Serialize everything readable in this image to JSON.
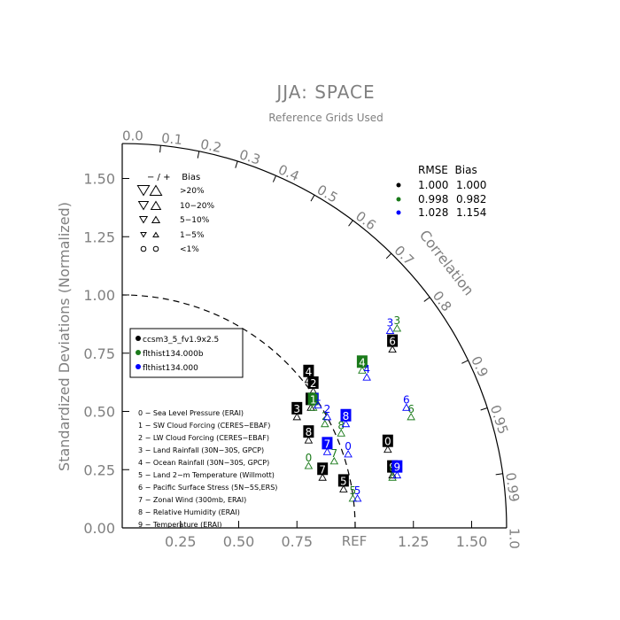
{
  "chart_data": {
    "type": "scatter",
    "title": "JJA: SPACE",
    "subtitle": "Reference Grids Used",
    "ylabel": "Standardized Deviations (Normalized)",
    "xlabel": "",
    "ref_label": "REF",
    "arc_label": "Correlation",
    "std_range": [
      0,
      1.65
    ],
    "x_ticks": [
      {
        "v": 0.25,
        "label": "0.25"
      },
      {
        "v": 0.5,
        "label": "0.50"
      },
      {
        "v": 0.75,
        "label": "0.75"
      },
      {
        "v": 1.25,
        "label": "1.25"
      },
      {
        "v": 1.5,
        "label": "1.50"
      }
    ],
    "y_ticks": [
      {
        "v": 0.0,
        "label": "0.00"
      },
      {
        "v": 0.25,
        "label": "0.25"
      },
      {
        "v": 0.5,
        "label": "0.50"
      },
      {
        "v": 0.75,
        "label": "0.75"
      },
      {
        "v": 1.0,
        "label": "1.00"
      },
      {
        "v": 1.25,
        "label": "1.25"
      },
      {
        "v": 1.5,
        "label": "1.50"
      }
    ],
    "corr_ticks": [
      {
        "v": 0.0,
        "label": "0.0"
      },
      {
        "v": 0.1,
        "label": "0.1"
      },
      {
        "v": 0.2,
        "label": "0.2"
      },
      {
        "v": 0.3,
        "label": "0.3"
      },
      {
        "v": 0.4,
        "label": "0.4"
      },
      {
        "v": 0.5,
        "label": "0.5"
      },
      {
        "v": 0.6,
        "label": "0.6"
      },
      {
        "v": 0.7,
        "label": "0.7"
      },
      {
        "v": 0.8,
        "label": "0.8"
      },
      {
        "v": 0.9,
        "label": "0.9"
      },
      {
        "v": 0.95,
        "label": "0.95"
      },
      {
        "v": 0.99,
        "label": "0.99"
      },
      {
        "v": 1.0,
        "label": "1.0"
      }
    ],
    "bias_legend": {
      "header": "− / +    Bias",
      "rows": [
        ">20%",
        "10−20%",
        "5−10%",
        "1−5%",
        "<1%"
      ]
    },
    "rmse_table": {
      "header": "RMSE  Bias",
      "rows": [
        {
          "color": "#000000",
          "rmse": "1.000",
          "bias": "1.000"
        },
        {
          "color": "#1a7a1a",
          "rmse": "0.998",
          "bias": "0.982"
        },
        {
          "color": "#0000ff",
          "rmse": "1.028",
          "bias": "1.154"
        }
      ]
    },
    "series": [
      {
        "name": "ccsm3_5_fv1.9x2.5",
        "color": "#000000",
        "points": [
          {
            "id": "0",
            "x": 1.14,
            "y": 0.37
          },
          {
            "id": "1",
            "x": 0.81,
            "y": 0.55
          },
          {
            "id": "2",
            "x": 0.82,
            "y": 0.62
          },
          {
            "id": "3",
            "x": 0.75,
            "y": 0.51
          },
          {
            "id": "4",
            "x": 0.8,
            "y": 0.67
          },
          {
            "id": "5",
            "x": 0.95,
            "y": 0.2
          },
          {
            "id": "6",
            "x": 1.16,
            "y": 0.8
          },
          {
            "id": "7",
            "x": 0.86,
            "y": 0.25
          },
          {
            "id": "8",
            "x": 0.8,
            "y": 0.41
          },
          {
            "id": "9",
            "x": 1.16,
            "y": 0.26
          }
        ]
      },
      {
        "name": "flthist134.000b",
        "color": "#1a7a1a",
        "points": [
          {
            "id": "0",
            "x": 0.8,
            "y": 0.3
          },
          {
            "id": "1",
            "x": 0.82,
            "y": 0.55
          },
          {
            "id": "2",
            "x": 0.87,
            "y": 0.48
          },
          {
            "id": "3",
            "x": 1.18,
            "y": 0.89
          },
          {
            "id": "4",
            "x": 1.03,
            "y": 0.71
          },
          {
            "id": "5",
            "x": 0.99,
            "y": 0.16
          },
          {
            "id": "6",
            "x": 1.24,
            "y": 0.51
          },
          {
            "id": "7",
            "x": 0.91,
            "y": 0.32
          },
          {
            "id": "8",
            "x": 0.94,
            "y": 0.44
          },
          {
            "id": "9",
            "x": 1.16,
            "y": 0.25
          }
        ]
      },
      {
        "name": "flthist134.000",
        "color": "#0000ff",
        "points": [
          {
            "id": "0",
            "x": 0.97,
            "y": 0.35
          },
          {
            "id": "1",
            "x": 0.84,
            "y": 0.56
          },
          {
            "id": "2",
            "x": 0.88,
            "y": 0.51
          },
          {
            "id": "3",
            "x": 1.15,
            "y": 0.88
          },
          {
            "id": "4",
            "x": 1.05,
            "y": 0.68
          },
          {
            "id": "5",
            "x": 1.01,
            "y": 0.16
          },
          {
            "id": "6",
            "x": 1.22,
            "y": 0.55
          },
          {
            "id": "7",
            "x": 0.88,
            "y": 0.36
          },
          {
            "id": "8",
            "x": 0.96,
            "y": 0.48
          },
          {
            "id": "9",
            "x": 1.18,
            "y": 0.26
          }
        ]
      }
    ],
    "variables": [
      "0 − Sea Level Pressure (ERAI)",
      "1 − SW Cloud Forcing (CERES−EBAF)",
      "2 − LW Cloud Forcing (CERES−EBAF)",
      "3 − Land Rainfall (30N−30S, GPCP)",
      "4 − Ocean Rainfall (30N−30S, GPCP)",
      "5 − Land 2−m Temperature (Willmott)",
      "6 − Pacific Surface Stress (5N−5S,ERS)",
      "7 − Zonal Wind (300mb, ERAI)",
      "8 − Relative Humidity (ERAI)",
      "9 − Temperature (ERAI)"
    ]
  }
}
